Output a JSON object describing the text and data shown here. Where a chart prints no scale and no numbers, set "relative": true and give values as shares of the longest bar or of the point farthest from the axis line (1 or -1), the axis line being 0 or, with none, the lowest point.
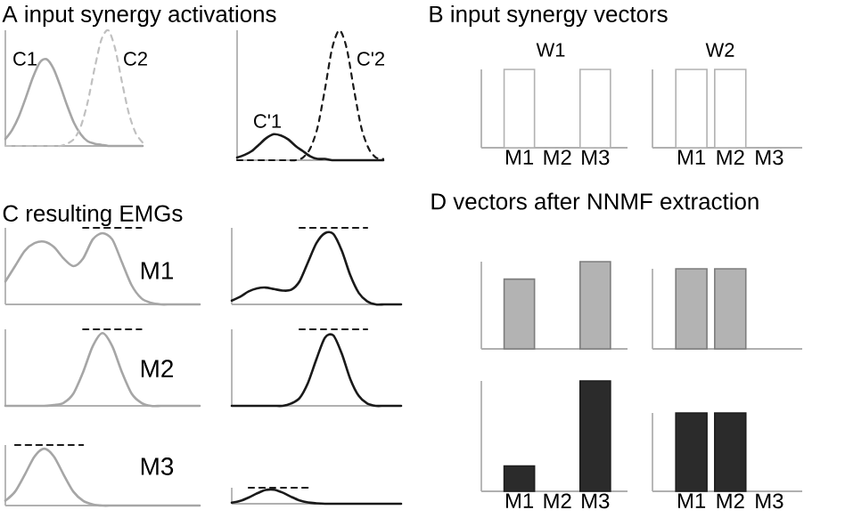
{
  "chart_data": [
    {
      "type": "line",
      "title": "A input synergy activations",
      "relative": true,
      "tick_labels": false,
      "categories": [
        null,
        null,
        null,
        null,
        null,
        null,
        null,
        null,
        null,
        null,
        null,
        null,
        null,
        null,
        null,
        null,
        null,
        null,
        null,
        null,
        null
      ],
      "series": [
        {
          "name": "C1",
          "color": "#a6a6a6",
          "line_style": "solid",
          "values": [
            0.06,
            0.14,
            0.26,
            0.42,
            0.59,
            0.72,
            0.75,
            0.67,
            0.52,
            0.35,
            0.2,
            0.1,
            0.04,
            0.02,
            0.01,
            0,
            0,
            0,
            0,
            0,
            0
          ]
        },
        {
          "name": "C2",
          "color": "#c0c0c0",
          "line_style": "dashed",
          "values": [
            0,
            0,
            0,
            0,
            0,
            0,
            0,
            0,
            0,
            0.02,
            0.06,
            0.17,
            0.38,
            0.67,
            0.92,
            1,
            0.84,
            0.55,
            0.28,
            0.11,
            0.03
          ]
        }
      ]
    },
    {
      "type": "line",
      "relative": true,
      "tick_labels": false,
      "categories": [
        null,
        null,
        null,
        null,
        null,
        null,
        null,
        null,
        null,
        null,
        null,
        null,
        null,
        null,
        null,
        null,
        null,
        null,
        null,
        null,
        null
      ],
      "series": [
        {
          "name": "C'1",
          "color": "#1a1a1a",
          "line_style": "solid",
          "values": [
            0.02,
            0.04,
            0.07,
            0.12,
            0.17,
            0.2,
            0.19,
            0.16,
            0.11,
            0.07,
            0.03,
            0.01,
            0.01,
            0,
            0,
            0,
            0,
            0,
            0,
            0,
            0
          ]
        },
        {
          "name": "C'2",
          "color": "#1a1a1a",
          "line_style": "dashed",
          "values": [
            0,
            0,
            0,
            0,
            0,
            0,
            0,
            0,
            0,
            0.02,
            0.09,
            0.25,
            0.54,
            0.86,
            1,
            0.86,
            0.54,
            0.25,
            0.09,
            0.02,
            0.01
          ]
        }
      ]
    },
    {
      "type": "bar",
      "title": "B input synergy vectors",
      "subtitle": "W1",
      "relative": true,
      "tick_labels": "x",
      "categories": [
        "M1",
        "M2",
        "M3"
      ],
      "values": [
        1,
        0,
        1
      ],
      "color": "#ffffff"
    },
    {
      "type": "bar",
      "subtitle": "W2",
      "relative": true,
      "tick_labels": "x",
      "categories": [
        "M1",
        "M2",
        "M3"
      ],
      "values": [
        1,
        1,
        0
      ],
      "color": "#ffffff"
    },
    {
      "type": "line",
      "title": "C resulting EMGs",
      "annotations": [
        "M1"
      ],
      "relative": true,
      "tick_labels": false,
      "categories": [
        null,
        null,
        null,
        null,
        null,
        null,
        null,
        null,
        null,
        null,
        null,
        null,
        null,
        null,
        null,
        null,
        null,
        null,
        null,
        null,
        null
      ],
      "series": [
        {
          "color": "#a6a6a6",
          "line_style": "solid",
          "values": [
            0.3,
            0.5,
            0.7,
            0.8,
            0.82,
            0.75,
            0.6,
            0.5,
            0.6,
            0.85,
            0.93,
            0.85,
            0.55,
            0.25,
            0.08,
            0.02,
            0,
            0,
            0,
            0,
            0
          ]
        },
        {
          "color": "#1a1a1a",
          "line_style": "dashed",
          "values": [
            null,
            null,
            null,
            null,
            null,
            null,
            null,
            null,
            1,
            1,
            1,
            1,
            1,
            1,
            1,
            null,
            null,
            null,
            null,
            null,
            null
          ]
        }
      ]
    },
    {
      "type": "line",
      "relative": true,
      "tick_labels": false,
      "categories": [
        null,
        null,
        null,
        null,
        null,
        null,
        null,
        null,
        null,
        null,
        null,
        null,
        null,
        null,
        null,
        null,
        null,
        null,
        null,
        null,
        null
      ],
      "series": [
        {
          "color": "#1a1a1a",
          "line_style": "solid",
          "values": [
            0.05,
            0.1,
            0.17,
            0.21,
            0.22,
            0.2,
            0.18,
            0.19,
            0.3,
            0.55,
            0.8,
            0.93,
            0.92,
            0.7,
            0.38,
            0.15,
            0.04,
            0,
            0,
            0,
            0
          ]
        },
        {
          "color": "#1a1a1a",
          "line_style": "dashed",
          "values": [
            null,
            null,
            null,
            null,
            null,
            null,
            null,
            null,
            1,
            1,
            1,
            1,
            1,
            1,
            1,
            1,
            1,
            null,
            null,
            null,
            null
          ]
        }
      ]
    },
    {
      "type": "line",
      "annotations": [
        "M2"
      ],
      "relative": true,
      "tick_labels": false,
      "categories": [
        null,
        null,
        null,
        null,
        null,
        null,
        null,
        null,
        null,
        null,
        null,
        null,
        null,
        null,
        null,
        null,
        null,
        null,
        null,
        null,
        null
      ],
      "series": [
        {
          "color": "#a6a6a6",
          "line_style": "solid",
          "values": [
            0,
            0,
            0,
            0,
            0,
            0.01,
            0.04,
            0.16,
            0.44,
            0.78,
            0.95,
            0.78,
            0.44,
            0.16,
            0.04,
            0,
            0,
            0,
            0,
            0,
            0
          ]
        },
        {
          "color": "#1a1a1a",
          "line_style": "dashed",
          "values": [
            null,
            null,
            null,
            null,
            null,
            null,
            null,
            null,
            1,
            1,
            1,
            1,
            1,
            1,
            1,
            null,
            null,
            null,
            null,
            null,
            null
          ]
        }
      ]
    },
    {
      "type": "line",
      "relative": true,
      "tick_labels": false,
      "categories": [
        null,
        null,
        null,
        null,
        null,
        null,
        null,
        null,
        null,
        null,
        null,
        null,
        null,
        null,
        null,
        null,
        null,
        null,
        null,
        null,
        null
      ],
      "series": [
        {
          "color": "#1a1a1a",
          "line_style": "solid",
          "values": [
            0,
            0,
            0,
            0,
            0,
            0,
            0,
            0.03,
            0.1,
            0.3,
            0.61,
            0.89,
            0.92,
            0.68,
            0.35,
            0.13,
            0.03,
            0,
            0,
            0,
            0
          ]
        },
        {
          "color": "#1a1a1a",
          "line_style": "dashed",
          "values": [
            null,
            null,
            null,
            null,
            null,
            null,
            null,
            null,
            1,
            1,
            1,
            1,
            1,
            1,
            1,
            1,
            1,
            null,
            null,
            null,
            null
          ]
        }
      ]
    },
    {
      "type": "line",
      "annotations": [
        "M3"
      ],
      "relative": true,
      "tick_labels": false,
      "categories": [
        null,
        null,
        null,
        null,
        null,
        null,
        null,
        null,
        null,
        null,
        null,
        null,
        null,
        null,
        null,
        null,
        null,
        null,
        null,
        null,
        null
      ],
      "series": [
        {
          "color": "#a6a6a6",
          "line_style": "solid",
          "values": [
            0.08,
            0.23,
            0.51,
            0.81,
            0.94,
            0.81,
            0.51,
            0.23,
            0.08,
            0.02,
            0,
            0,
            0,
            0,
            0,
            0,
            0,
            0,
            0,
            0,
            0
          ]
        },
        {
          "color": "#1a1a1a",
          "line_style": "dashed",
          "values": [
            null,
            1,
            1,
            1,
            1,
            1,
            1,
            1,
            1,
            null,
            null,
            null,
            null,
            null,
            null,
            null,
            null,
            null,
            null,
            null,
            null
          ]
        }
      ]
    },
    {
      "type": "line",
      "relative": true,
      "tick_labels": false,
      "categories": [
        null,
        null,
        null,
        null,
        null,
        null,
        null,
        null,
        null,
        null,
        null,
        null,
        null,
        null,
        null,
        null,
        null,
        null,
        null,
        null,
        null
      ],
      "series": [
        {
          "color": "#1a1a1a",
          "line_style": "solid",
          "values": [
            0.07,
            0.18,
            0.39,
            0.65,
            0.86,
            0.88,
            0.7,
            0.44,
            0.21,
            0.08,
            0.03,
            0,
            0,
            0,
            0,
            0,
            0,
            0,
            0,
            0,
            0
          ]
        },
        {
          "color": "#1a1a1a",
          "line_style": "dashed",
          "values": [
            null,
            null,
            1,
            1,
            1,
            1,
            1,
            1,
            1,
            1,
            null,
            null,
            null,
            null,
            null,
            null,
            null,
            null,
            null,
            null,
            null
          ]
        }
      ]
    },
    {
      "type": "bar",
      "title": "D vectors after NNMF extraction",
      "relative": true,
      "tick_labels": false,
      "categories": [
        null,
        null,
        null
      ],
      "values": [
        0.8,
        0,
        1
      ],
      "color": "#b3b3b3"
    },
    {
      "type": "bar",
      "relative": true,
      "tick_labels": false,
      "categories": [
        null,
        null,
        null
      ],
      "values": [
        1,
        1,
        0
      ],
      "color": "#b3b3b3"
    },
    {
      "type": "bar",
      "relative": true,
      "tick_labels": "x",
      "categories": [
        "M1",
        "M2",
        "M3"
      ],
      "values": [
        0.23,
        0,
        1
      ],
      "color": "#2b2b2b"
    },
    {
      "type": "bar",
      "relative": true,
      "tick_labels": "x",
      "categories": [
        "M1",
        "M2",
        "M3"
      ],
      "values": [
        1,
        1,
        0
      ],
      "color": "#2b2b2b"
    }
  ]
}
